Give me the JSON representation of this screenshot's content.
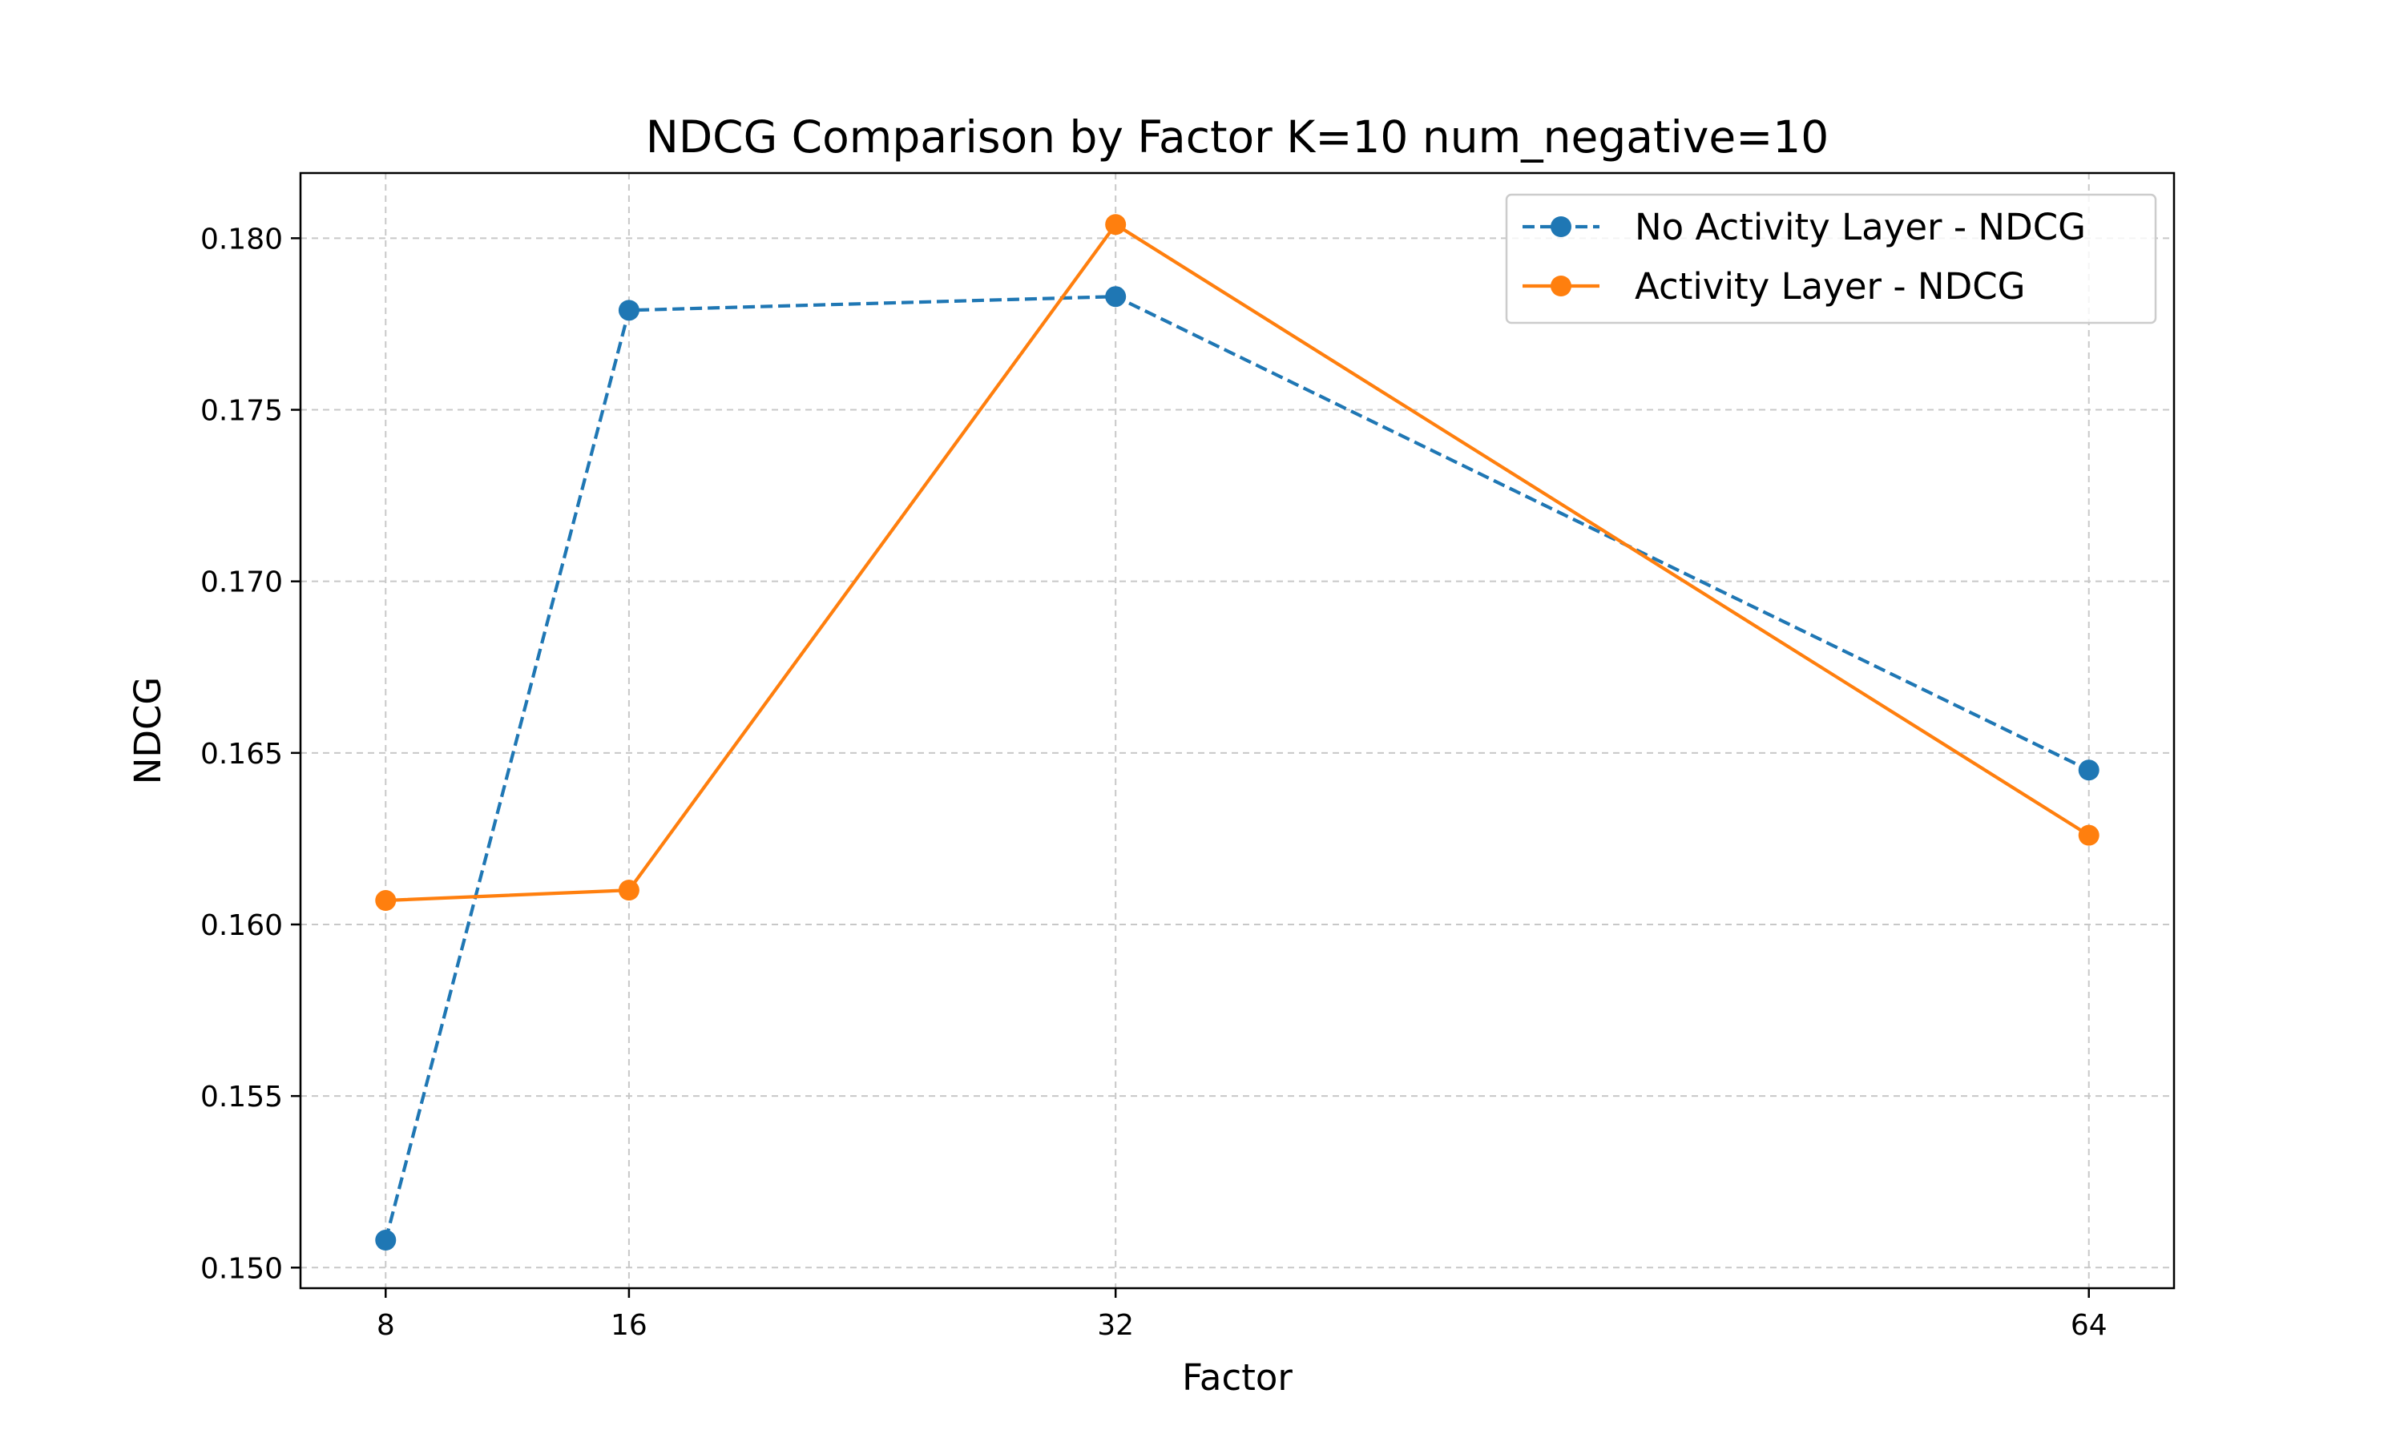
{
  "chart_data": {
    "type": "line",
    "title": "NDCG Comparison by Factor K=10 num_negative=10",
    "xlabel": "Factor",
    "ylabel": "NDCG",
    "x": [
      8,
      16,
      32,
      64
    ],
    "x_tick_labels": [
      "8",
      "16",
      "32",
      "64"
    ],
    "y_ticks": [
      0.15,
      0.155,
      0.16,
      0.165,
      0.17,
      0.175,
      0.18
    ],
    "y_tick_labels": [
      "0.150",
      "0.155",
      "0.160",
      "0.165",
      "0.170",
      "0.175",
      "0.180"
    ],
    "xlim": [
      5.2,
      66.8
    ],
    "ylim": [
      0.1494,
      0.1819
    ],
    "grid": true,
    "legend_position": "top-right",
    "series": [
      {
        "name": "No Activity Layer - NDCG",
        "values": [
          0.1508,
          0.1779,
          0.1783,
          0.1645
        ],
        "color": "#1f77b4",
        "line_style": "dashed",
        "marker": "circle"
      },
      {
        "name": "Activity Layer - NDCG",
        "values": [
          0.1607,
          0.161,
          0.1804,
          0.1626
        ],
        "color": "#ff7f0e",
        "line_style": "solid",
        "marker": "circle"
      }
    ]
  }
}
